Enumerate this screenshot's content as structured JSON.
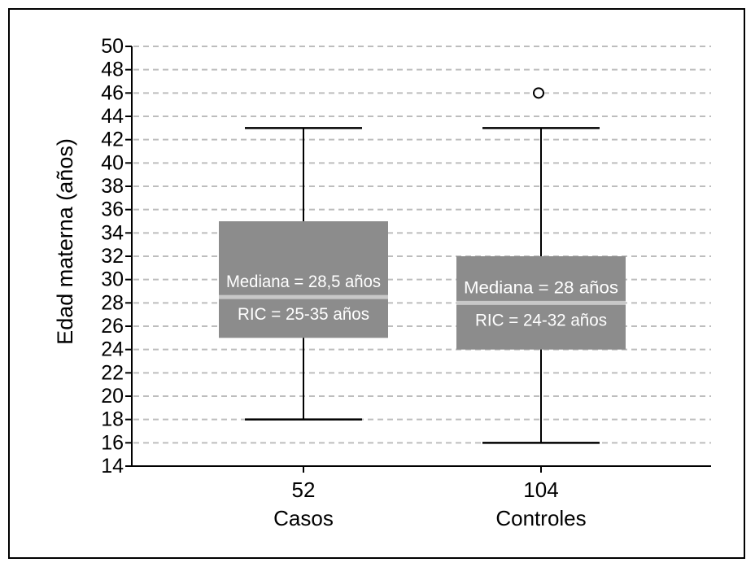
{
  "chart_data": {
    "type": "box",
    "ylabel": "Edad materna (años)",
    "ylim": [
      14,
      50
    ],
    "yticks": [
      14,
      16,
      18,
      20,
      22,
      24,
      26,
      28,
      30,
      32,
      34,
      36,
      38,
      40,
      42,
      44,
      46,
      48,
      50
    ],
    "grid": true,
    "colors": {
      "box": "#8c8c8c",
      "median": "#c8c8c8",
      "grid": "#bdbdbd",
      "axis": "#000000"
    },
    "groups": [
      {
        "count_label": "52",
        "category": "Casos",
        "whisker_low": 18,
        "q1": 25,
        "median": 28.5,
        "q3": 35,
        "whisker_high": 43,
        "outliers": [],
        "median_text": "Mediana = 28,5 años",
        "iqr_text": "RIC = 25-35 años"
      },
      {
        "count_label": "104",
        "category": "Controles",
        "whisker_low": 16,
        "q1": 24,
        "median": 28,
        "q3": 32,
        "whisker_high": 43,
        "outliers": [
          46
        ],
        "median_text": "Mediana = 28 años",
        "iqr_text": "RIC = 24-32 años"
      }
    ]
  }
}
